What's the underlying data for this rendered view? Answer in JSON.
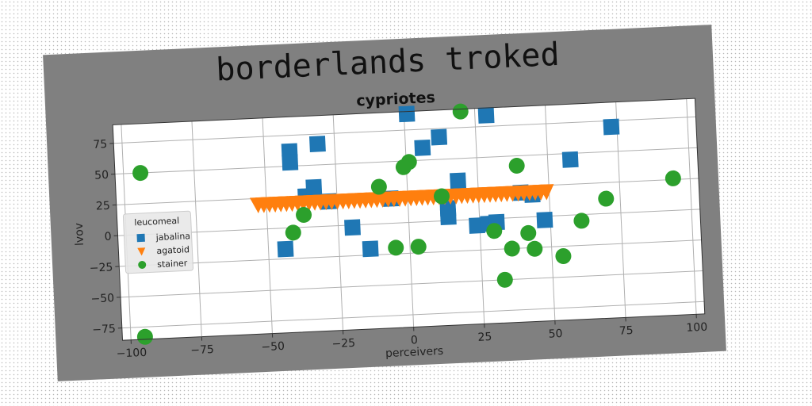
{
  "chart_data": {
    "type": "scatter",
    "title": "borderlands troked",
    "subtitle": "cypriotes",
    "xlabel": "perceivers",
    "ylabel": "lvov",
    "xlim": [
      -103,
      103
    ],
    "ylim": [
      -85,
      90
    ],
    "xticks": [
      -100,
      -75,
      -50,
      -25,
      0,
      25,
      50,
      75,
      100
    ],
    "yticks": [
      -75,
      -50,
      -25,
      0,
      25,
      50,
      75
    ],
    "grid": true,
    "legend": {
      "title": "leucomeal",
      "placement": "left"
    },
    "series": [
      {
        "name": "jabalina",
        "marker": "square",
        "color": "#1f77b4",
        "points": [
          [
            -44,
            -17
          ],
          [
            -41,
            62
          ],
          [
            -41,
            53
          ],
          [
            -36,
            25
          ],
          [
            -33,
            32
          ],
          [
            -31,
            67
          ],
          [
            -28,
            20
          ],
          [
            -20,
            -2
          ],
          [
            -14,
            -20
          ],
          [
            -6,
            20
          ],
          [
            1,
            88
          ],
          [
            6,
            60
          ],
          [
            12,
            68
          ],
          [
            14,
            10
          ],
          [
            14,
            3
          ],
          [
            18,
            32
          ],
          [
            24,
            -5
          ],
          [
            28,
            -4
          ],
          [
            29,
            84
          ],
          [
            31,
            -3
          ],
          [
            40,
            20
          ],
          [
            44,
            18
          ],
          [
            48,
            -3
          ],
          [
            58,
            45
          ],
          [
            73,
            70
          ]
        ]
      },
      {
        "name": "agatoid",
        "marker": "triangle-down",
        "color": "#ff7f0e",
        "points": [
          [
            -53,
            20
          ],
          [
            -51,
            20
          ],
          [
            -49,
            20
          ],
          [
            -47,
            20
          ],
          [
            -45,
            20
          ],
          [
            -43,
            20
          ],
          [
            -41,
            20
          ],
          [
            -39,
            20
          ],
          [
            -37,
            20
          ],
          [
            -35,
            20
          ],
          [
            -33,
            20
          ],
          [
            -31,
            20
          ],
          [
            -29,
            20
          ],
          [
            -27,
            20
          ],
          [
            -25,
            20
          ],
          [
            -23,
            20
          ],
          [
            -21,
            20
          ],
          [
            -19,
            20
          ],
          [
            -17,
            20
          ],
          [
            -15,
            20
          ],
          [
            -13,
            20
          ],
          [
            -11,
            20
          ],
          [
            -9,
            20
          ],
          [
            -7,
            20
          ],
          [
            -5,
            20
          ],
          [
            -3,
            20
          ],
          [
            -1,
            20
          ],
          [
            1,
            20
          ],
          [
            3,
            20
          ],
          [
            5,
            20
          ],
          [
            7,
            20
          ],
          [
            9,
            20
          ],
          [
            11,
            20
          ],
          [
            13,
            20
          ],
          [
            15,
            20
          ],
          [
            17,
            20
          ],
          [
            19,
            20
          ],
          [
            21,
            20
          ],
          [
            23,
            20
          ],
          [
            25,
            20
          ],
          [
            27,
            20
          ],
          [
            29,
            20
          ],
          [
            31,
            20
          ],
          [
            33,
            20
          ],
          [
            35,
            20
          ],
          [
            37,
            20
          ],
          [
            39,
            20
          ],
          [
            41,
            20
          ],
          [
            43,
            20
          ],
          [
            45,
            20
          ],
          [
            47,
            20
          ],
          [
            49,
            20
          ]
        ]
      },
      {
        "name": "stainer",
        "marker": "circle",
        "color": "#2ca02c",
        "points": [
          [
            -94,
            50
          ],
          [
            -95,
            -83
          ],
          [
            -37,
            10
          ],
          [
            -41,
            -4
          ],
          [
            -10,
            30
          ],
          [
            -5,
            -20
          ],
          [
            -1,
            45
          ],
          [
            1,
            49
          ],
          [
            3,
            -20
          ],
          [
            12,
            20
          ],
          [
            20,
            88
          ],
          [
            30,
            -10
          ],
          [
            33,
            -50
          ],
          [
            36,
            -25
          ],
          [
            39,
            42
          ],
          [
            42,
            -13
          ],
          [
            44,
            -26
          ],
          [
            54,
            -33
          ],
          [
            61,
            -5
          ],
          [
            70,
            12
          ],
          [
            94,
            26
          ]
        ]
      }
    ]
  }
}
